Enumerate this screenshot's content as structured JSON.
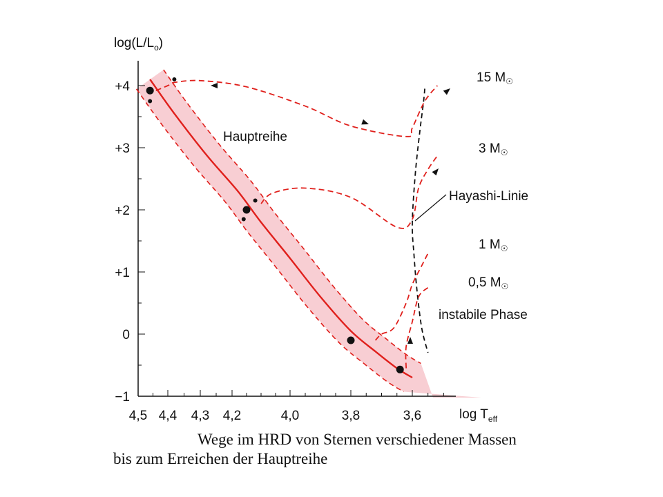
{
  "chart_data": {
    "type": "line",
    "ylabel": "log(L/L",
    "ylabel_sub": "o",
    "ylabel_close": ")",
    "xlabel": "log T",
    "xlabel_sub": "eff",
    "x_reversed": true,
    "xlim": [
      4.5,
      3.45
    ],
    "ylim": [
      -1,
      4.2
    ],
    "xticks": [
      4.5,
      4.4,
      4.3,
      4.2,
      4.0,
      3.8,
      3.6
    ],
    "xtick_labels": [
      "4,5",
      "4,4",
      "4,3",
      "4,2",
      "4,0",
      "3,8",
      "3,6"
    ],
    "yticks": [
      4,
      3,
      2,
      1,
      0,
      -1
    ],
    "ytick_labels": [
      "+4",
      "+3",
      "+2",
      "+1",
      "0",
      "−1"
    ],
    "main_sequence": {
      "label": "Hauptreihe",
      "x": [
        4.46,
        4.38,
        4.28,
        4.18,
        4.1,
        4.0,
        3.9,
        3.8,
        3.72,
        3.65,
        3.6
      ],
      "y": [
        4.1,
        3.55,
        2.88,
        2.3,
        1.8,
        1.22,
        0.6,
        0.05,
        -0.28,
        -0.55,
        -0.7
      ],
      "band_color": "#f7c6cb",
      "line_color": "#e0201c"
    },
    "hayashi_line": {
      "label": "Hayashi-Linie",
      "x": [
        3.56,
        3.565,
        3.575,
        3.59,
        3.6,
        3.595,
        3.585,
        3.57,
        3.55
      ],
      "y": [
        3.95,
        3.7,
        3.3,
        2.6,
        1.8,
        1.3,
        0.7,
        0.1,
        -0.3
      ]
    },
    "tracks": [
      {
        "name": "15 M",
        "end_label": "☉",
        "x": [
          4.44,
          4.4,
          4.38,
          4.3,
          4.15,
          3.95,
          3.8,
          3.62,
          3.6,
          3.56,
          3.52
        ],
        "y": [
          3.92,
          4.0,
          4.05,
          4.08,
          3.98,
          3.67,
          3.35,
          3.18,
          3.32,
          3.75,
          4.0
        ]
      },
      {
        "name": "3 M",
        "end_label": "☉",
        "x": [
          4.1,
          4.06,
          3.95,
          3.8,
          3.65,
          3.6,
          3.58,
          3.55,
          3.52
        ],
        "y": [
          2.1,
          2.27,
          2.35,
          2.2,
          1.72,
          1.85,
          2.35,
          2.65,
          2.87
        ]
      },
      {
        "name": "1 M",
        "end_label": "☉",
        "x": [
          3.72,
          3.7,
          3.66,
          3.62,
          3.6,
          3.57,
          3.55
        ],
        "y": [
          -0.1,
          0.0,
          0.1,
          0.5,
          0.8,
          1.1,
          1.3
        ]
      },
      {
        "name": "0,5 M",
        "end_label": "☉",
        "x": [
          3.62,
          3.62,
          3.6,
          3.58,
          3.55
        ],
        "y": [
          -0.55,
          -0.2,
          0.2,
          0.6,
          0.75
        ]
      }
    ],
    "dots": [
      {
        "x": 4.46,
        "y": 3.92,
        "size": "large"
      },
      {
        "x": 4.46,
        "y": 3.75,
        "size": "small"
      },
      {
        "x": 4.38,
        "y": 4.1,
        "size": "small"
      },
      {
        "x": 4.15,
        "y": 2.0,
        "size": "large"
      },
      {
        "x": 4.12,
        "y": 2.15,
        "size": "small"
      },
      {
        "x": 4.16,
        "y": 1.85,
        "size": "small"
      },
      {
        "x": 3.8,
        "y": -0.1,
        "size": "large"
      },
      {
        "x": 3.64,
        "y": -0.57,
        "size": "large"
      }
    ],
    "annotations": {
      "hauptreihe": "Hauptreihe",
      "hayashi": "Hayashi-Linie",
      "instabile": "instabile Phase"
    }
  },
  "caption": {
    "line1": "Wege im HRD von Sternen verschiedener Massen",
    "line2": "bis zum Erreichen der Hauptreihe"
  }
}
